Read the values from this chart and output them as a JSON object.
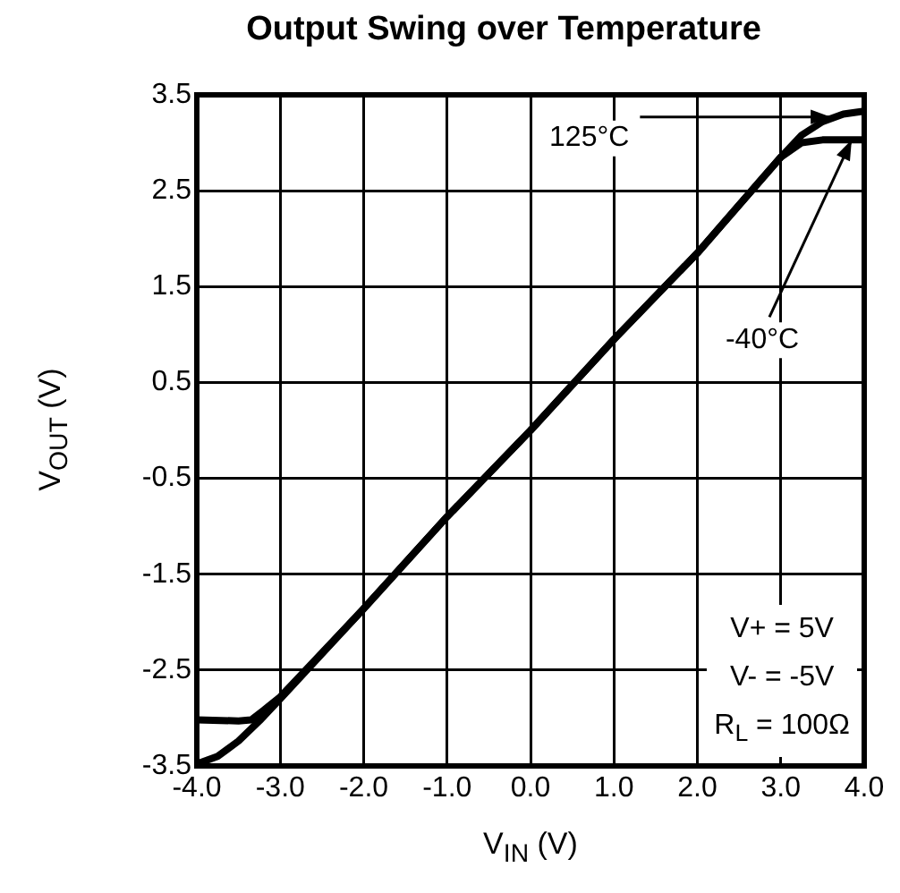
{
  "chart_data": {
    "type": "line",
    "title": "Output Swing over Temperature",
    "xlabel": "V$_{IN}$ (V)",
    "ylabel": "V$_{OUT}$ (V)",
    "xlim": [
      -4,
      4
    ],
    "ylim": [
      -3.5,
      3.5
    ],
    "xticks": [
      {
        "value": -4,
        "label": "-4.0"
      },
      {
        "value": -3,
        "label": "-3.0"
      },
      {
        "value": -2,
        "label": "-2.0"
      },
      {
        "value": -1,
        "label": "-1.0"
      },
      {
        "value": 0,
        "label": "0.0"
      },
      {
        "value": 1,
        "label": "1.0"
      },
      {
        "value": 2,
        "label": "2.0"
      },
      {
        "value": 3,
        "label": "3.0"
      },
      {
        "value": 4,
        "label": "4.0"
      }
    ],
    "yticks": [
      -3.5,
      -2.5,
      -1.5,
      -0.5,
      0.5,
      1.5,
      2.5,
      3.5
    ],
    "grid": true,
    "legend": false,
    "marker": "none",
    "line_style": "solid",
    "series": [
      {
        "color": "#000000",
        "x": [
          -4,
          -3.75,
          -3.5,
          -3.25,
          -3,
          -2,
          -1,
          0,
          1,
          2,
          2.75,
          3,
          3.25,
          3.5,
          3.75,
          4
        ],
        "values": [
          -3.48,
          -3.4,
          -3.24,
          -3.03,
          -2.8,
          -1.86,
          -0.9,
          0,
          0.95,
          1.85,
          2.6,
          2.85,
          3.08,
          3.22,
          3.3,
          3.33
        ]
      },
      {
        "color": "#000000",
        "x": [
          -4,
          -3.5,
          -3.35,
          -3.2,
          -3,
          -2,
          -1,
          0,
          1,
          2,
          2.75,
          3,
          3.25,
          3.5,
          4
        ],
        "values": [
          -3.02,
          -3.03,
          -3.02,
          -2.92,
          -2.78,
          -1.86,
          -0.9,
          0,
          0.95,
          1.85,
          2.6,
          2.85,
          3.0,
          3.03,
          3.03
        ]
      }
    ],
    "annotations": [
      {
        "text": "125°C",
        "x": 3.6,
        "y": 3.27
      },
      {
        "text": "-40°C",
        "x": 3.85,
        "y": 3.03
      },
      "V+ = 5V",
      "V- = -5V",
      "R$_{L}$ = 100Ω"
    ]
  }
}
